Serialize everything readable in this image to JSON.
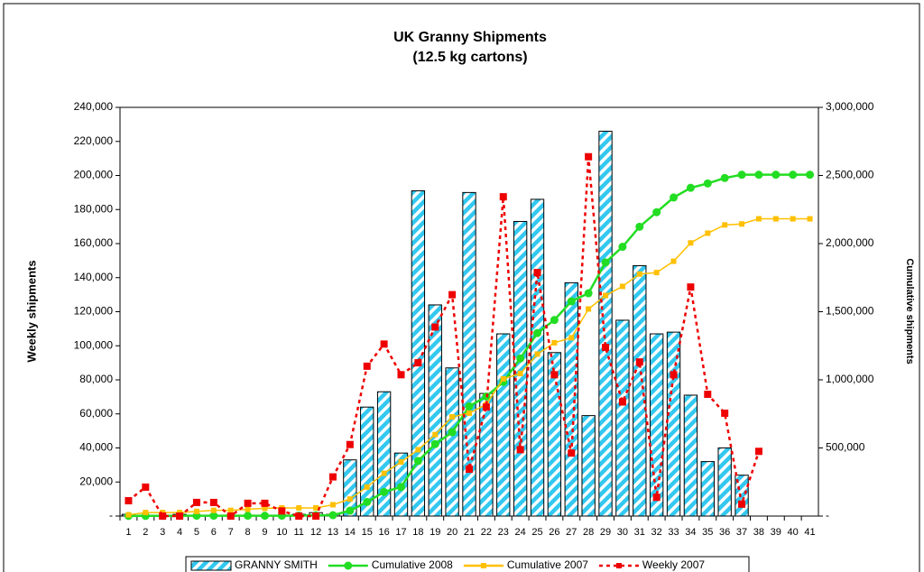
{
  "chart_data": {
    "type": "bar",
    "title": "UK Granny Shipments",
    "subtitle": "(12.5 kg cartons)",
    "y_label": "Weekly shipments",
    "y2_label": "Cumulative shipments",
    "categories": [
      "1",
      "2",
      "3",
      "4",
      "5",
      "6",
      "7",
      "8",
      "9",
      "10",
      "11",
      "12",
      "13",
      "14",
      "15",
      "16",
      "17",
      "18",
      "19",
      "20",
      "21",
      "22",
      "23",
      "24",
      "25",
      "26",
      "27",
      "28",
      "29",
      "30",
      "31",
      "32",
      "33",
      "34",
      "35",
      "36",
      "37",
      "38",
      "39",
      "40",
      "41"
    ],
    "ylim": [
      0,
      240000
    ],
    "yticks": [
      {
        "value": 0,
        "label": "-"
      },
      {
        "value": 20000,
        "label": "20,000"
      },
      {
        "value": 40000,
        "label": "40,000"
      },
      {
        "value": 60000,
        "label": "60,000"
      },
      {
        "value": 80000,
        "label": "80,000"
      },
      {
        "value": 100000,
        "label": "100,000"
      },
      {
        "value": 120000,
        "label": "120,000"
      },
      {
        "value": 140000,
        "label": "140,000"
      },
      {
        "value": 160000,
        "label": "160,000"
      },
      {
        "value": 180000,
        "label": "180,000"
      },
      {
        "value": 200000,
        "label": "200,000"
      },
      {
        "value": 220000,
        "label": "220,000"
      },
      {
        "value": 240000,
        "label": "240,000"
      }
    ],
    "y2lim": [
      0,
      3000000
    ],
    "y2ticks": [
      {
        "value": 0,
        "label": "-"
      },
      {
        "value": 500000,
        "label": "500,000"
      },
      {
        "value": 1000000,
        "label": "1,000,000"
      },
      {
        "value": 1500000,
        "label": "1,500,000"
      },
      {
        "value": 2000000,
        "label": "2,000,000"
      },
      {
        "value": 2500000,
        "label": "2,500,000"
      },
      {
        "value": 3000000,
        "label": "3,000,000"
      }
    ],
    "series": [
      {
        "name": "GRANNY SMITH",
        "type": "bar",
        "color": "#33c8f0",
        "values": [
          1000,
          500,
          0,
          1000,
          0,
          0,
          0,
          0,
          0,
          0,
          1000,
          2000,
          1000,
          33000,
          64000,
          73000,
          37000,
          191000,
          124000,
          87000,
          190000,
          72000,
          107000,
          173000,
          186000,
          96000,
          137000,
          59000,
          226000,
          115000,
          147000,
          107000,
          108000,
          71000,
          32000,
          40000,
          24000,
          null,
          null,
          null,
          null
        ]
      },
      {
        "name": "Cumulative 2008",
        "type": "line",
        "axis": "y2",
        "color": "#22dd22",
        "marker": "circle",
        "values": [
          1000,
          1500,
          1500,
          2500,
          2500,
          2500,
          2500,
          2500,
          2500,
          2500,
          3500,
          5500,
          6500,
          39500,
          103500,
          176500,
          213500,
          404500,
          528500,
          615500,
          805500,
          877500,
          984500,
          1157500,
          1343500,
          1439500,
          1576500,
          1635500,
          1861500,
          1976500,
          2123500,
          2230500,
          2338500,
          2409500,
          2441500,
          2481500,
          2505500,
          2505500,
          2505500,
          2505500,
          2505500
        ]
      },
      {
        "name": "Cumulative 2007",
        "type": "line",
        "axis": "y2",
        "color": "#ffc000",
        "marker": "square",
        "values": [
          9000,
          26000,
          26000,
          26000,
          34000,
          42000,
          42000,
          49500,
          57000,
          60000,
          60000,
          60000,
          83000,
          125000,
          213000,
          314000,
          397000,
          487000,
          598000,
          728000,
          755500,
          819500,
          1007000,
          1046000,
          1189000,
          1272000,
          1309000,
          1520000,
          1619000,
          1686000,
          1776500,
          1787500,
          1870500,
          2005000,
          2076500,
          2136900,
          2143900,
          2181900,
          2181900,
          2181900,
          2181900
        ]
      },
      {
        "name": "Weekly 2007",
        "type": "line",
        "color": "#ee0000",
        "marker": "square",
        "dash": true,
        "values": [
          9000,
          17000,
          0,
          0,
          8000,
          8000,
          0,
          7500,
          7500,
          3000,
          0,
          0,
          23000,
          42000,
          88000,
          101000,
          83000,
          90000,
          111000,
          130000,
          27500,
          64000,
          187500,
          39000,
          143000,
          83000,
          37000,
          211000,
          99000,
          67000,
          90500,
          11000,
          83000,
          134500,
          71500,
          60400,
          7000,
          38000,
          null,
          null,
          null
        ]
      }
    ]
  }
}
